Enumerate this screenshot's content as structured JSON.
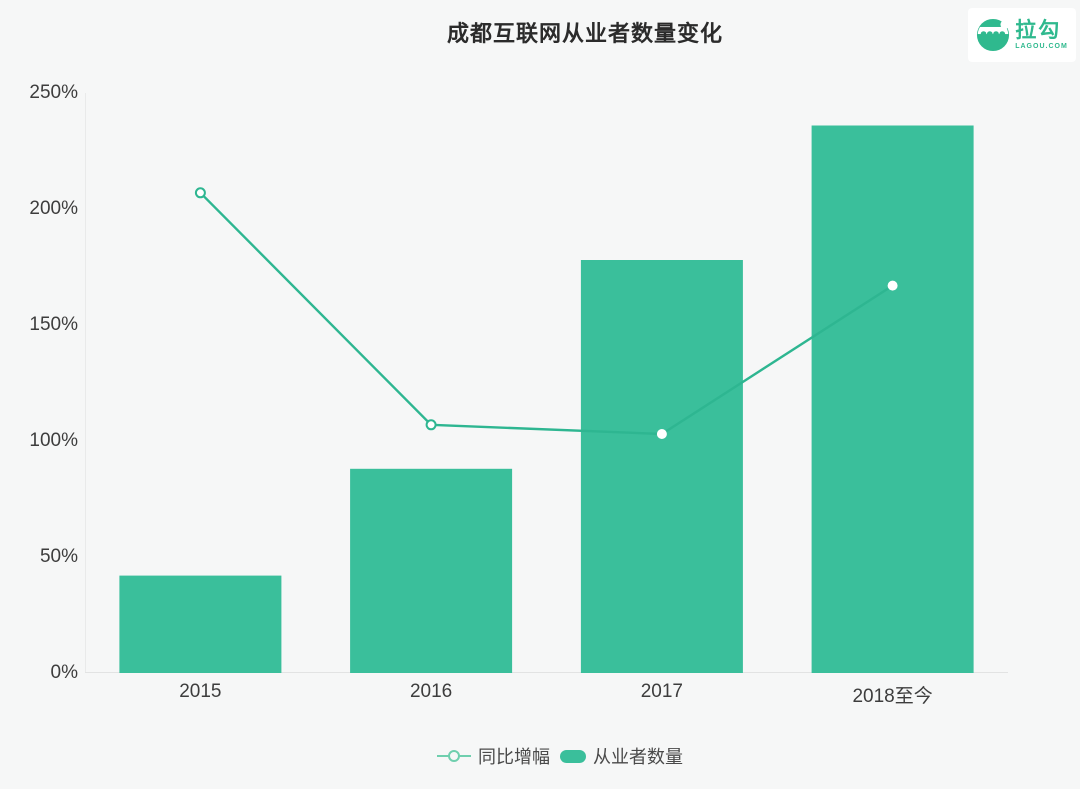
{
  "header": {
    "title": "成都互联网从业者数量变化"
  },
  "logo": {
    "name": "拉勾",
    "domain": "LAGOU.COM",
    "color": "#2fb98e"
  },
  "colors": {
    "bar": "#3abf9b",
    "line": "#2eb691",
    "legend_line": "#6fcfae",
    "background": "#f6f7f7",
    "axis": "#e2e3e3",
    "text": "#3d3d3d"
  },
  "chart_data": {
    "type": "bar",
    "subtype": "combo-bar-line",
    "title": "成都互联网从业者数量变化",
    "categories": [
      "2015",
      "2016",
      "2017",
      "2018至今"
    ],
    "series": [
      {
        "name": "从业者数量",
        "type": "bar",
        "values": [
          42,
          88,
          178,
          236
        ],
        "unit": "%",
        "color": "#3abf9b"
      },
      {
        "name": "同比增幅",
        "type": "line",
        "values": [
          207,
          107,
          103,
          167
        ],
        "unit": "%",
        "color": "#2eb691"
      }
    ],
    "xlabel": "",
    "ylabel": "",
    "ylim": [
      0,
      250
    ],
    "y_tick_step": 50,
    "y_ticks": [
      "0%",
      "50%",
      "100%",
      "150%",
      "200%",
      "250%"
    ],
    "grid": false,
    "legend_position": "bottom"
  },
  "legend": {
    "line_label": "同比增幅",
    "bar_label": "从业者数量"
  }
}
